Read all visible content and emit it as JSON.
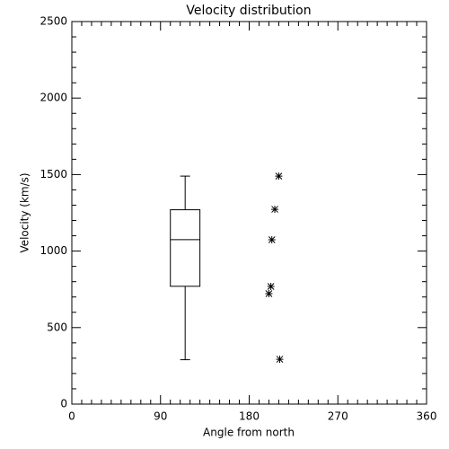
{
  "chart_data": {
    "type": "box",
    "title": "Velocity distribution",
    "x_label": "Angle from north",
    "y_label": "Velocity (km/s)",
    "xlim": [
      0,
      360
    ],
    "xticks": [
      0,
      90,
      180,
      270,
      360
    ],
    "ylim": [
      0,
      2500
    ],
    "yticks": [
      0,
      500,
      1000,
      1500,
      2000,
      2500
    ],
    "color": "#000000",
    "box": {
      "position": 115,
      "width": 30,
      "whisker_low": 290,
      "q1": 770,
      "median": 1075,
      "q3": 1270,
      "whisker_high": 1490
    },
    "points": {
      "x": [
        210,
        206,
        203,
        202,
        200,
        211
      ],
      "y": [
        1490,
        1273,
        1074,
        769,
        722,
        293
      ]
    }
  }
}
